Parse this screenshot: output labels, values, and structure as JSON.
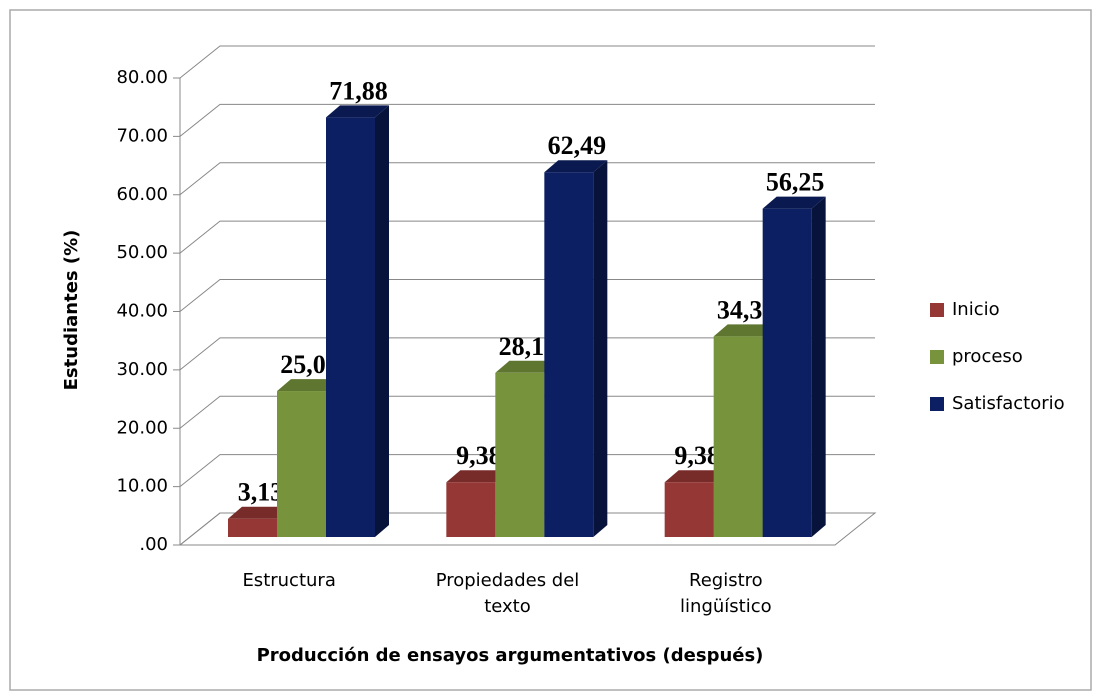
{
  "chart_data": {
    "type": "bar",
    "y_label": "Estudiantes (%)",
    "x_label": "Producción de ensayos argumentativos (después)",
    "categories": [
      "Estructura",
      "Propiedades del texto",
      "Registro lingüístico"
    ],
    "series": [
      {
        "name": "Inicio",
        "color": "#953735",
        "values": [
          3.13,
          9.38,
          9.38
        ],
        "value_labels": [
          "3,13",
          "9,38",
          "9,38"
        ]
      },
      {
        "name": "proceso",
        "color": "#77933c",
        "values": [
          25.0,
          28.13,
          34.37
        ],
        "value_labels": [
          "25,00",
          "28,13",
          "34,37"
        ]
      },
      {
        "name": "Satisfactorio",
        "color": "#0d1f63",
        "values": [
          71.88,
          62.49,
          56.25
        ],
        "value_labels": [
          "71,88",
          "62,49",
          "56,25"
        ]
      }
    ],
    "ylim": [
      0,
      80
    ],
    "yticks": [
      {
        "value": 0,
        "label": ".00"
      },
      {
        "value": 10,
        "label": "10.00"
      },
      {
        "value": 20,
        "label": "20.00"
      },
      {
        "value": 30,
        "label": "30.00"
      },
      {
        "value": 40,
        "label": "40.00"
      },
      {
        "value": 50,
        "label": "50.00"
      },
      {
        "value": 60,
        "label": "60.00"
      },
      {
        "value": 70,
        "label": "70.00"
      },
      {
        "value": 80,
        "label": "80.00"
      }
    ],
    "grid": true,
    "legend": "right"
  }
}
